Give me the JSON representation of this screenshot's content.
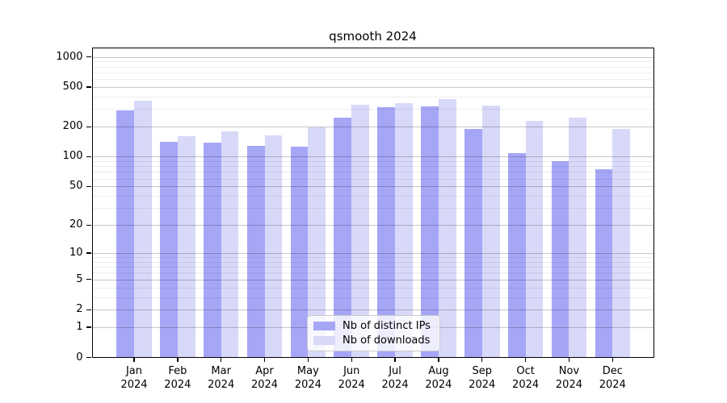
{
  "chart_data": {
    "type": "bar",
    "title": "qsmooth 2024",
    "categories": [
      "Jan",
      "Feb",
      "Mar",
      "Apr",
      "May",
      "Jun",
      "Jul",
      "Aug",
      "Sep",
      "Oct",
      "Nov",
      "Dec"
    ],
    "year_label": "2024",
    "series": [
      {
        "name": "Nb of distinct IPs",
        "color": "#a6a6f7",
        "values": [
          290,
          140,
          138,
          128,
          126,
          245,
          316,
          322,
          190,
          109,
          90,
          74
        ]
      },
      {
        "name": "Nb of downloads",
        "color": "#d8d8f9",
        "values": [
          366,
          160,
          180,
          164,
          197,
          332,
          346,
          380,
          328,
          227,
          245,
          189
        ]
      }
    ],
    "yscale": "log1p",
    "yticks": [
      0,
      1,
      2,
      5,
      10,
      20,
      50,
      100,
      200,
      500,
      1000
    ],
    "minor_gridlines": [
      3,
      4,
      6,
      7,
      8,
      9,
      30,
      40,
      60,
      70,
      80,
      90,
      300,
      400,
      600,
      700,
      800,
      900
    ],
    "ylim": [
      0,
      1250
    ],
    "grid": true,
    "legend_position": "lower center",
    "background_color": "#ffffff",
    "axis_color": "#000000"
  }
}
